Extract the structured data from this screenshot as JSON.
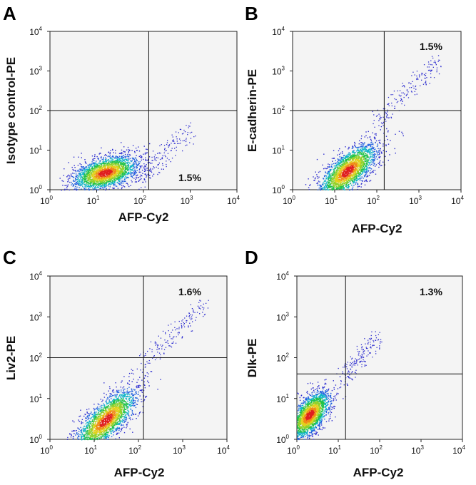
{
  "chart_data": [
    {
      "type": "scatter",
      "panel_label": "A",
      "xlabel": "AFP-Cy2",
      "ylabel": "Isotype control-PE",
      "x_scale": "log",
      "y_scale": "log",
      "xlim": [
        1,
        10000
      ],
      "ylim": [
        1,
        10000
      ],
      "x_ticks": [
        1,
        10,
        100,
        1000,
        10000
      ],
      "y_ticks": [
        1,
        10,
        100,
        1000,
        10000
      ],
      "gate": {
        "x": 130,
        "y": 100
      },
      "quadrant_percent": "1.5%",
      "quadrant_label_position": "lower-right",
      "population": {
        "main": {
          "x_center": 15,
          "y_center": 2.7,
          "x_spread_decades": 0.35,
          "y_spread_decades": 0.22,
          "correlation": 0.45
        },
        "tail": {
          "x_range": [
            60,
            1000
          ],
          "y_range": [
            1.5,
            30
          ]
        }
      }
    },
    {
      "type": "scatter",
      "panel_label": "B",
      "xlabel": "AFP-Cy2",
      "ylabel": "E-cadherin-PE",
      "x_scale": "log",
      "y_scale": "log",
      "xlim": [
        1,
        10000
      ],
      "ylim": [
        1,
        10000
      ],
      "x_ticks": [
        1,
        10,
        100,
        1000,
        10000
      ],
      "y_ticks": [
        1,
        10,
        100,
        1000,
        10000
      ],
      "gate": {
        "x": 150,
        "y": 100
      },
      "quadrant_percent": "1.5%",
      "quadrant_label_position": "upper-right",
      "population": {
        "main": {
          "x_center": 20,
          "y_center": 3.0,
          "x_spread_decades": 0.35,
          "y_spread_decades": 0.35,
          "correlation": 0.7
        },
        "tail": {
          "x_range": [
            100,
            3000
          ],
          "y_range": [
            60,
            2000
          ]
        }
      }
    },
    {
      "type": "scatter",
      "panel_label": "C",
      "xlabel": "AFP-Cy2",
      "ylabel": "Liv2-PE",
      "x_scale": "log",
      "y_scale": "log",
      "xlim": [
        1,
        10000
      ],
      "ylim": [
        1,
        10000
      ],
      "x_ticks": [
        1,
        10,
        100,
        1000,
        10000
      ],
      "y_ticks": [
        1,
        10,
        100,
        1000,
        10000
      ],
      "gate": {
        "x": 130,
        "y": 100
      },
      "quadrant_percent": "1.6%",
      "quadrant_label_position": "upper-right",
      "population": {
        "main": {
          "x_center": 18,
          "y_center": 3.0,
          "x_spread_decades": 0.35,
          "y_spread_decades": 0.38,
          "correlation": 0.75
        },
        "tail": {
          "x_range": [
            90,
            3000
          ],
          "y_range": [
            50,
            2000
          ]
        }
      }
    },
    {
      "type": "scatter",
      "panel_label": "D",
      "xlabel": "AFP-Cy2",
      "ylabel": "Dlk-PE",
      "x_scale": "log",
      "y_scale": "log",
      "xlim": [
        1,
        10000
      ],
      "ylim": [
        1,
        10000
      ],
      "x_ticks": [
        1,
        10,
        100,
        1000,
        10000
      ],
      "y_ticks": [
        1,
        10,
        100,
        1000,
        10000
      ],
      "gate": {
        "x": 15,
        "y": 40
      },
      "quadrant_percent": "1.3%",
      "quadrant_label_position": "upper-right",
      "population": {
        "main": {
          "x_center": 2.0,
          "y_center": 4.0,
          "x_spread_decades": 0.25,
          "y_spread_decades": 0.3,
          "correlation": 0.6
        },
        "tail": {
          "x_range": [
            12,
            80
          ],
          "y_range": [
            30,
            300
          ]
        }
      }
    }
  ]
}
